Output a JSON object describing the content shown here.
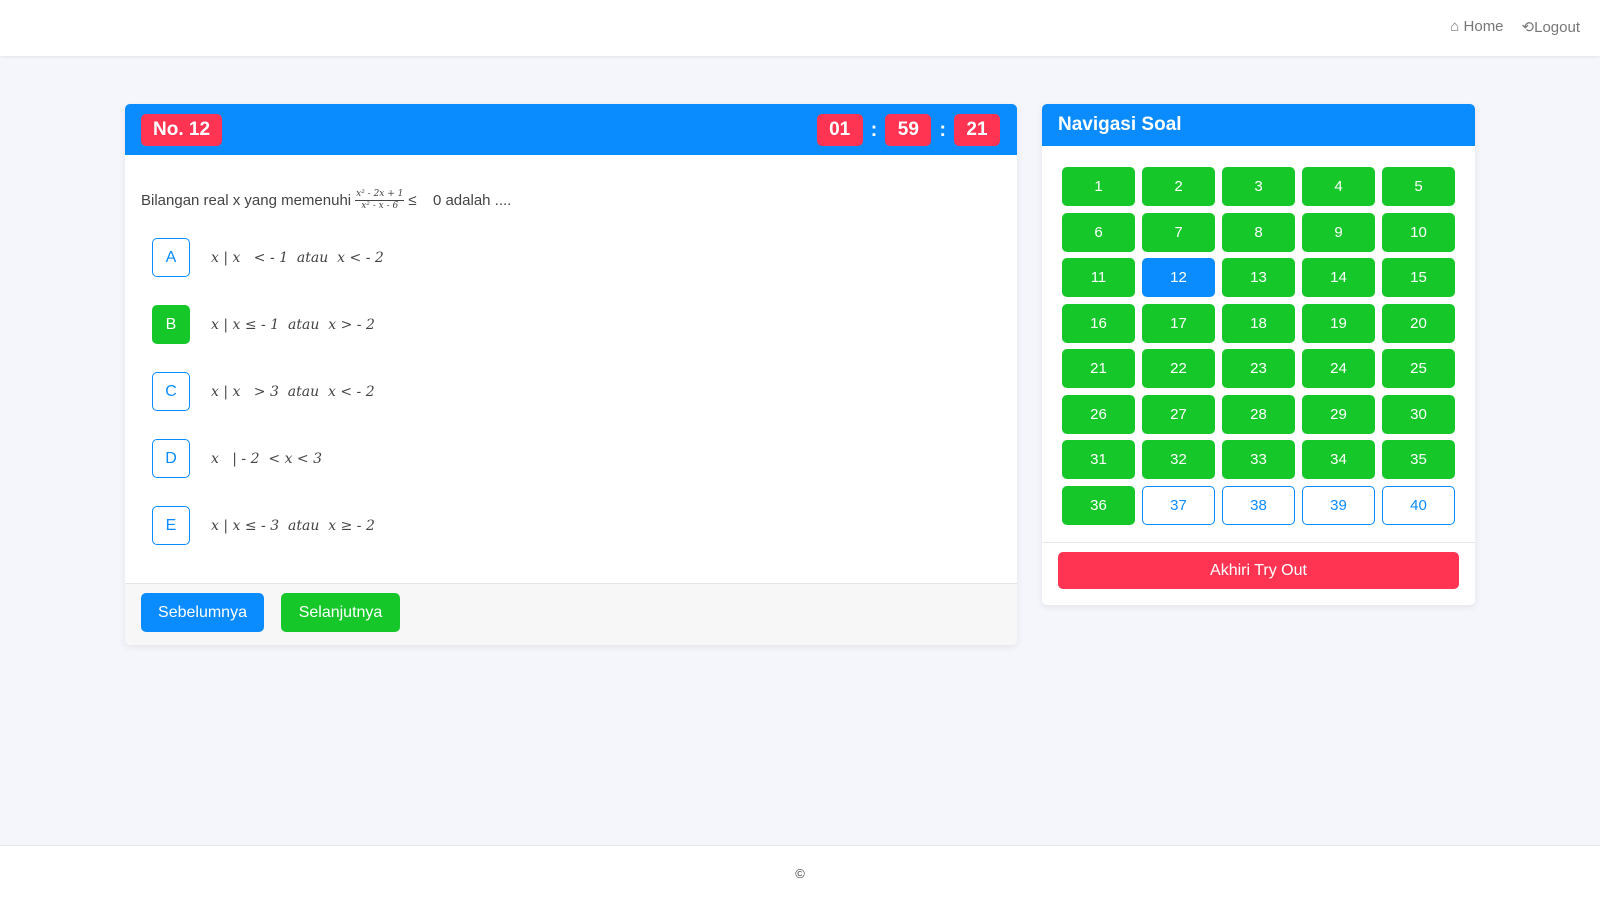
{
  "nav": {
    "home": "Home",
    "home_icon": "home-icon",
    "logout": "Logout",
    "logout_icon": "logout-icon"
  },
  "question": {
    "number_label": "No. 12",
    "timer": {
      "hours": "01",
      "minutes": "59",
      "seconds": "21"
    },
    "text_before": "Bilangan real x yang memenuhi",
    "fraction": {
      "numerator": "x² - 2x + 1",
      "denominator": "x² - x - 6"
    },
    "text_op": "≤",
    "text_after": "0 adalah ....",
    "options": [
      {
        "label": "A",
        "text": "x | x   < - 1  atau  x < - 2",
        "selected": false
      },
      {
        "label": "B",
        "text": "x | x ≤ - 1  atau  x > - 2",
        "selected": true
      },
      {
        "label": "C",
        "text": "x | x   > 3  atau  x < - 2",
        "selected": false
      },
      {
        "label": "D",
        "text": "x   | - 2  < x < 3",
        "selected": false
      },
      {
        "label": "E",
        "text": "x | x ≤ - 3  atau  x ≥ - 2",
        "selected": false
      }
    ],
    "prev": "Sebelumnya",
    "next": "Selanjutnya"
  },
  "navigation": {
    "title": "Navigasi Soal",
    "current": 12,
    "answered_through": 36,
    "total": 40,
    "end_button": "Akhiri Try Out"
  },
  "colors": {
    "primary": "#0a8cff",
    "answered": "#16c72a",
    "danger": "#ff3452"
  },
  "footer": {
    "text": "©"
  }
}
